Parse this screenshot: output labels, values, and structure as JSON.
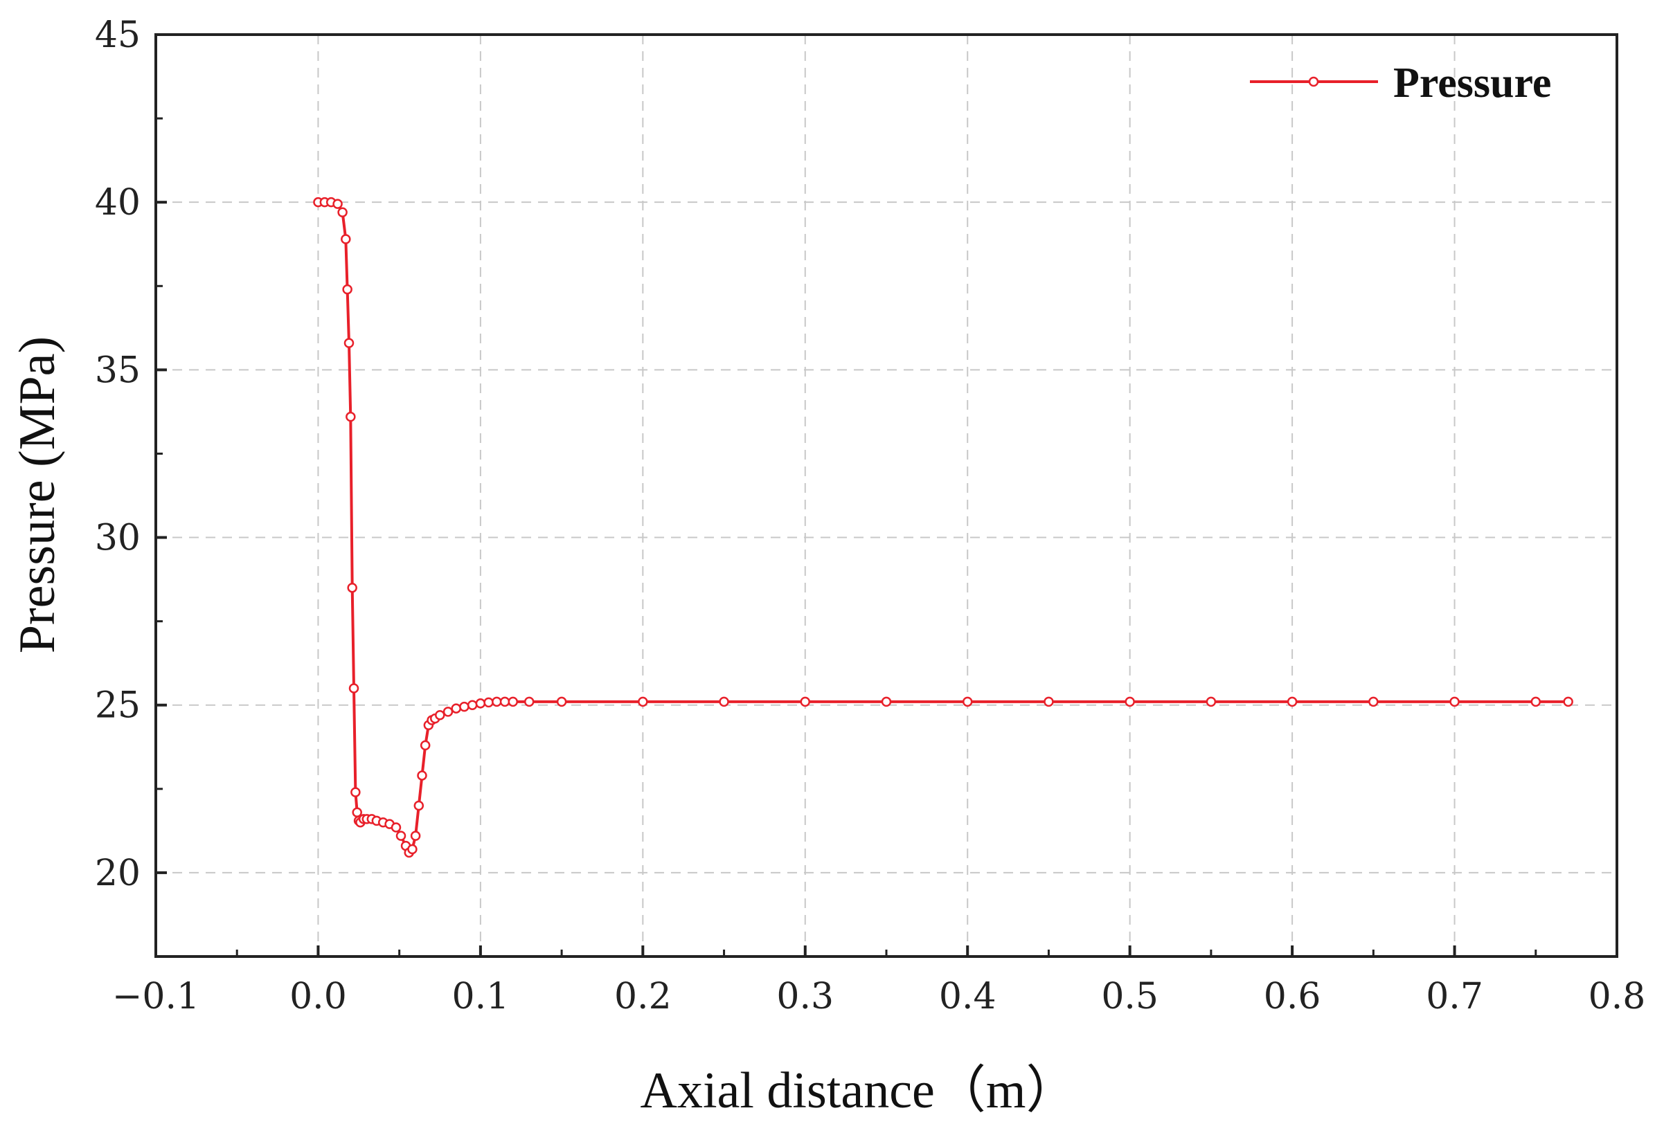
{
  "chart_data": {
    "type": "line",
    "title": "",
    "xlabel": "Axial distance（m）",
    "ylabel": "Pressure (MPa)",
    "xlim": [
      -0.1,
      0.8
    ],
    "ylim": [
      17.5,
      45
    ],
    "x_tick_labels": [
      "−0.1",
      "0.0",
      "0.1",
      "0.2",
      "0.3",
      "0.4",
      "0.5",
      "0.6",
      "0.7",
      "0.8"
    ],
    "x_tick_values": [
      -0.1,
      0.0,
      0.1,
      0.2,
      0.3,
      0.4,
      0.5,
      0.6,
      0.7,
      0.8
    ],
    "y_tick_labels": [
      "20",
      "25",
      "30",
      "35",
      "40",
      "45"
    ],
    "y_tick_values": [
      20,
      25,
      30,
      35,
      40,
      45
    ],
    "grid": true,
    "legend_position": "top-right",
    "series": [
      {
        "name": "Pressure",
        "color": "#e8202a",
        "marker": "open-circle",
        "x": [
          0.0,
          0.004,
          0.008,
          0.012,
          0.015,
          0.017,
          0.018,
          0.019,
          0.02,
          0.021,
          0.022,
          0.023,
          0.024,
          0.025,
          0.026,
          0.028,
          0.03,
          0.033,
          0.036,
          0.04,
          0.044,
          0.048,
          0.051,
          0.054,
          0.056,
          0.058,
          0.06,
          0.062,
          0.064,
          0.066,
          0.068,
          0.07,
          0.072,
          0.075,
          0.08,
          0.085,
          0.09,
          0.095,
          0.1,
          0.105,
          0.11,
          0.115,
          0.12,
          0.13,
          0.15,
          0.2,
          0.25,
          0.3,
          0.35,
          0.4,
          0.45,
          0.5,
          0.55,
          0.6,
          0.65,
          0.7,
          0.75,
          0.77
        ],
        "y": [
          40.0,
          40.0,
          40.0,
          39.95,
          39.7,
          38.9,
          37.4,
          35.8,
          33.6,
          28.5,
          25.5,
          22.4,
          21.8,
          21.55,
          21.5,
          21.6,
          21.6,
          21.6,
          21.55,
          21.5,
          21.45,
          21.35,
          21.1,
          20.8,
          20.6,
          20.7,
          21.1,
          22.0,
          22.9,
          23.8,
          24.4,
          24.55,
          24.6,
          24.7,
          24.8,
          24.9,
          24.95,
          25.0,
          25.05,
          25.08,
          25.1,
          25.1,
          25.1,
          25.1,
          25.1,
          25.1,
          25.1,
          25.1,
          25.1,
          25.1,
          25.1,
          25.1,
          25.1,
          25.1,
          25.1,
          25.1,
          25.1,
          25.1
        ]
      }
    ]
  }
}
